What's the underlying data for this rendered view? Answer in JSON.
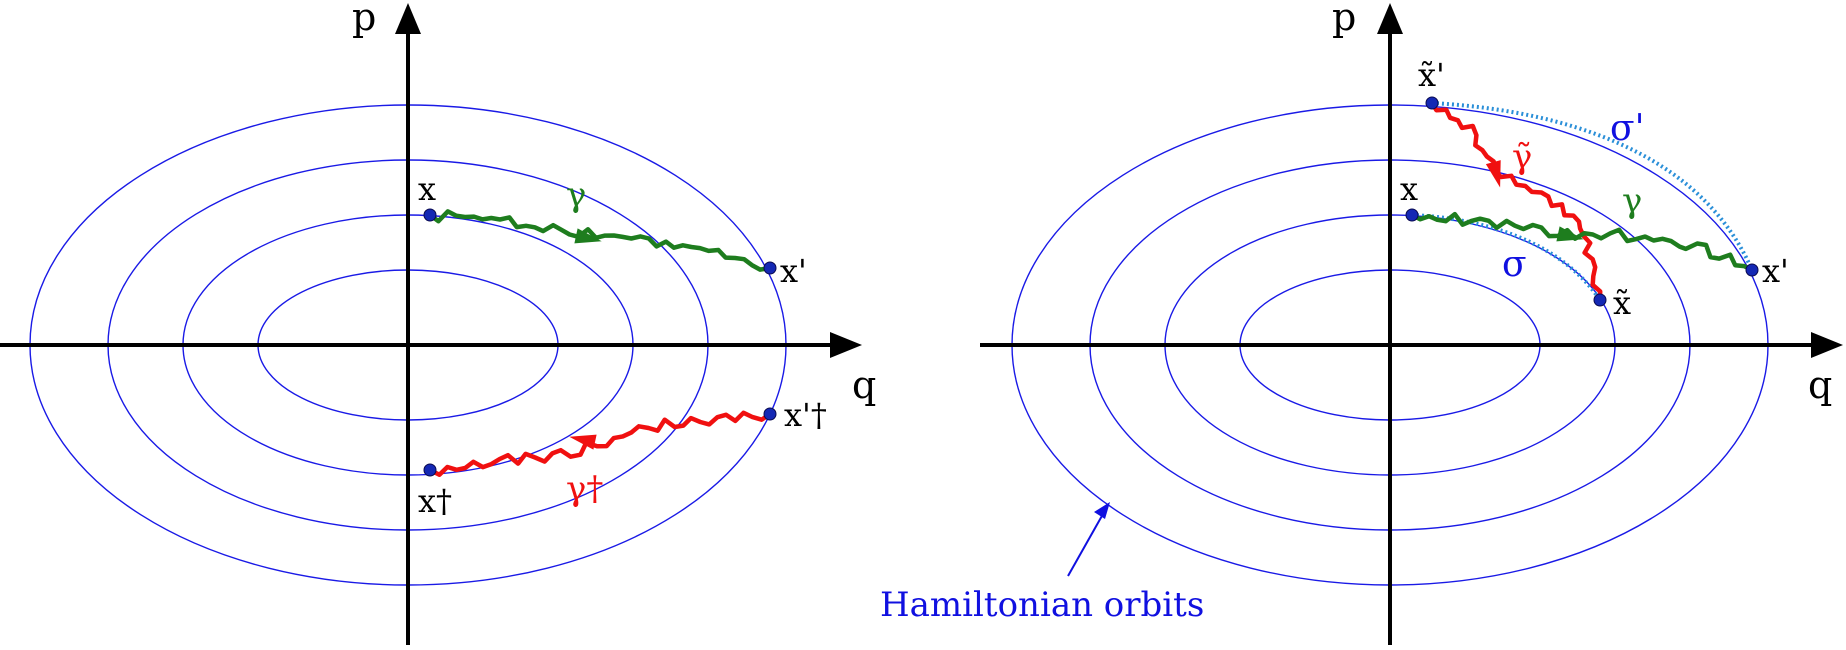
{
  "colors": {
    "orbit": "#1a1ae6",
    "green_path": "#1e7d1e",
    "red_path": "#f01010",
    "dotted_path": "#2a8fd8",
    "point": "#1428b4",
    "annotation": "#1010e0"
  },
  "left_panel": {
    "axis_p": "p",
    "axis_q": "q",
    "point_x": "x",
    "point_x_prime": "x'",
    "point_x_dagger": "x†",
    "point_x_prime_dagger": "x'†",
    "path_gamma": "γ",
    "path_gamma_dagger": "γ†"
  },
  "right_panel": {
    "axis_p": "p",
    "axis_q": "q",
    "point_x": "x",
    "point_x_prime": "x'",
    "point_x_tilde": "x̃",
    "point_x_tilde_prime": "x̃'",
    "path_gamma": "γ",
    "path_gamma_tilde": "γ̃",
    "path_sigma": "σ",
    "path_sigma_prime": "σ'"
  },
  "annotation": {
    "orbits_label": "Hamiltonian orbits"
  }
}
